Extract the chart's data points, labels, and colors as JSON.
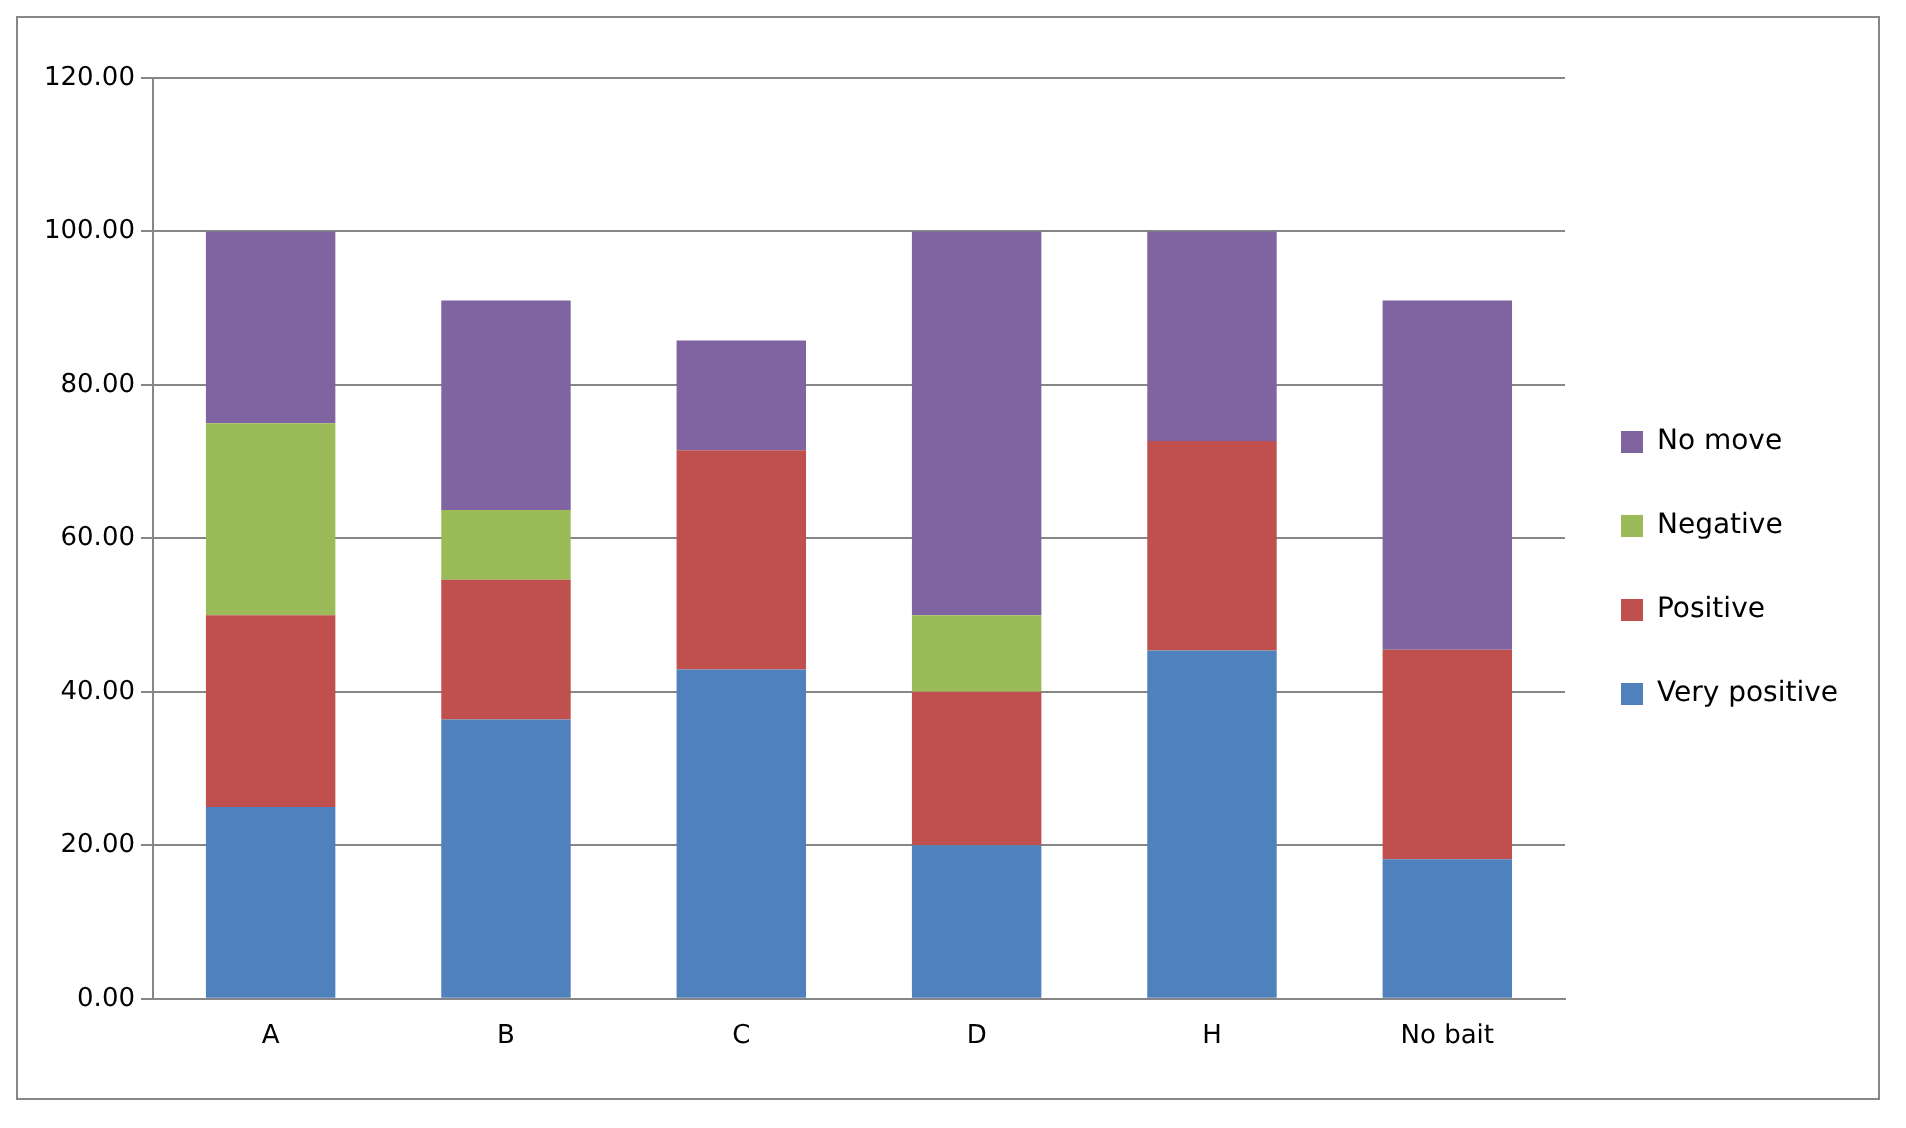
{
  "chart_data": {
    "type": "bar",
    "stacked": true,
    "categories": [
      "A",
      "B",
      "C",
      "D",
      "H",
      "No bait"
    ],
    "series": [
      {
        "name": "Very positive",
        "color": "#4f81bd",
        "values": [
          25,
          36.4,
          42.9,
          20,
          45.4,
          18.2
        ]
      },
      {
        "name": "Positive",
        "color": "#c0504d",
        "values": [
          25,
          18.2,
          28.6,
          20,
          27.3,
          27.3
        ]
      },
      {
        "name": "Negative",
        "color": "#9bbb59",
        "values": [
          25,
          9.1,
          0,
          10,
          0,
          0
        ]
      },
      {
        "name": "No move",
        "color": "#8064a2",
        "values": [
          25,
          27.3,
          14.3,
          50,
          27.3,
          45.5
        ]
      }
    ],
    "ylim": [
      0,
      120
    ],
    "yticks": [
      {
        "value": 0,
        "label": "0.00"
      },
      {
        "value": 20,
        "label": "20.00"
      },
      {
        "value": 40,
        "label": "40.00"
      },
      {
        "value": 60,
        "label": "60.00"
      },
      {
        "value": 80,
        "label": "80.00"
      },
      {
        "value": 100,
        "label": "100.00"
      },
      {
        "value": 120,
        "label": "120.00"
      }
    ],
    "grid": "y",
    "legend": "right"
  }
}
